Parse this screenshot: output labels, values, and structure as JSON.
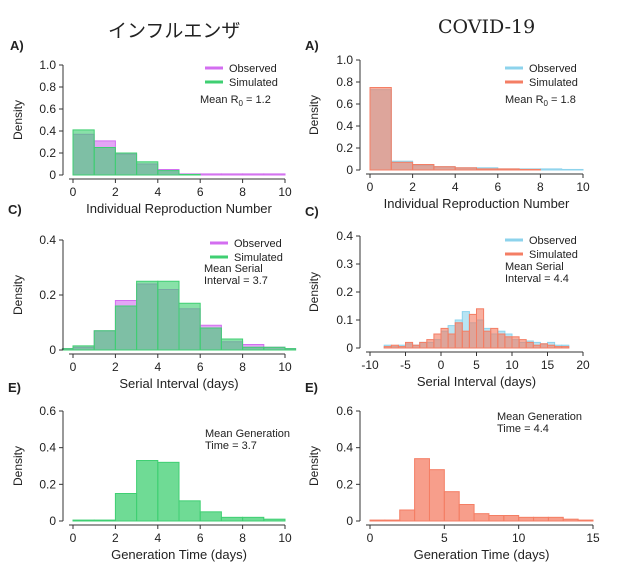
{
  "columns": {
    "left_title": "インフルエンザ",
    "right_title": "COVID-19"
  },
  "chart_data": [
    {
      "id": "flu-r0",
      "type": "bar",
      "panel_label": "A)",
      "xlabel": "Individual Reproduction Number",
      "ylabel": "Density",
      "xlim": [
        0,
        10
      ],
      "ylim": [
        0,
        1.0
      ],
      "xticks": [
        "0",
        "2",
        "4",
        "6",
        "8",
        "10"
      ],
      "yticks": [
        "0",
        "0.2",
        "0.4",
        "0.6",
        "0.8",
        "1.0"
      ],
      "bin_edges": [
        0,
        1,
        2,
        3,
        4,
        5,
        6,
        7,
        8,
        9,
        10
      ],
      "series": [
        {
          "name": "Observed",
          "color": "#d36ef0",
          "values": [
            0.37,
            0.31,
            0.19,
            0.1,
            0.05,
            0.01,
            0.01,
            0.01,
            0.01,
            0.01
          ]
        },
        {
          "name": "Simulated",
          "color": "#3fcf72",
          "values": [
            0.41,
            0.25,
            0.2,
            0.12,
            0.04,
            0.005,
            0,
            0,
            0,
            0
          ]
        }
      ],
      "annotation": [
        "Mean R",
        "0",
        " = 1.2"
      ],
      "legend": "top-right"
    },
    {
      "id": "covid-r0",
      "type": "bar",
      "panel_label": "A)",
      "xlabel": "Individual Reproduction Number",
      "ylabel": "Density",
      "xlim": [
        0,
        10
      ],
      "ylim": [
        0,
        1.0
      ],
      "xticks": [
        "0",
        "2",
        "4",
        "6",
        "8",
        "10"
      ],
      "yticks": [
        "0",
        "0.2",
        "0.4",
        "0.6",
        "0.8",
        "1.0"
      ],
      "bin_edges": [
        0,
        1,
        2,
        3,
        4,
        5,
        6,
        7,
        8,
        9,
        10
      ],
      "series": [
        {
          "name": "Observed",
          "color": "#8dd3ec",
          "values": [
            0.73,
            0.08,
            0.04,
            0.03,
            0.02,
            0.02,
            0.01,
            0.01,
            0.01,
            0.005
          ]
        },
        {
          "name": "Simulated",
          "color": "#f47e64",
          "values": [
            0.75,
            0.07,
            0.05,
            0.03,
            0.02,
            0.01,
            0.01,
            0.005,
            0,
            0
          ]
        }
      ],
      "annotation": [
        "Mean R",
        "0",
        " = 1.8"
      ],
      "legend": "top-right"
    },
    {
      "id": "flu-serial",
      "type": "bar",
      "panel_label": "C)",
      "xlabel": "Serial Interval (days)",
      "ylabel": "Density",
      "xlim": [
        0,
        10
      ],
      "ylim": [
        0,
        0.4
      ],
      "xticks": [
        "0",
        "2",
        "4",
        "6",
        "8",
        "10"
      ],
      "yticks": [
        "0",
        "0.2",
        "0.4"
      ],
      "bin_edges": [
        -0.5,
        0,
        1,
        2,
        3,
        4,
        5,
        6,
        7,
        8,
        9,
        10,
        10.5
      ],
      "series": [
        {
          "name": "Observed",
          "color": "#d36ef0",
          "values": [
            0.005,
            0.01,
            0.07,
            0.18,
            0.24,
            0.22,
            0.15,
            0.09,
            0.03,
            0.02,
            0.01,
            0.005
          ]
        },
        {
          "name": "Simulated",
          "color": "#3fcf72",
          "values": [
            0.005,
            0.015,
            0.07,
            0.16,
            0.25,
            0.25,
            0.17,
            0.08,
            0.04,
            0.01,
            0.01,
            0.005
          ]
        }
      ],
      "annotation": [
        "Mean Serial",
        "Interval = 3.7"
      ],
      "legend": "top-right"
    },
    {
      "id": "covid-serial",
      "type": "bar",
      "panel_label": "C)",
      "xlabel": "Serial Interval (days)",
      "ylabel": "Density",
      "xlim": [
        -10,
        20
      ],
      "ylim": [
        0,
        0.4
      ],
      "xticks": [
        "-10",
        "-5",
        "0",
        "5",
        "10",
        "15",
        "20"
      ],
      "yticks": [
        "0",
        "0.1",
        "0.2",
        "0.3",
        "0.4"
      ],
      "bin_edges": [
        -8,
        -7,
        -6,
        -5,
        -4,
        -3,
        -2,
        -1,
        0,
        1,
        2,
        3,
        4,
        5,
        6,
        7,
        8,
        9,
        10,
        11,
        12,
        13,
        14,
        15,
        16,
        17,
        18
      ],
      "series": [
        {
          "name": "Observed",
          "color": "#8dd3ec",
          "values": [
            0.01,
            0.005,
            0.01,
            0.015,
            0.01,
            0.02,
            0.02,
            0.03,
            0.06,
            0.08,
            0.1,
            0.13,
            0.09,
            0.1,
            0.07,
            0.05,
            0.06,
            0.05,
            0.03,
            0.02,
            0.025,
            0.02,
            0.015,
            0.02,
            0.01,
            0.01
          ]
        },
        {
          "name": "Simulated",
          "color": "#f47e64",
          "values": [
            0.005,
            0.01,
            0.005,
            0.02,
            0.01,
            0.02,
            0.03,
            0.05,
            0.07,
            0.05,
            0.09,
            0.06,
            0.12,
            0.14,
            0.06,
            0.07,
            0.05,
            0.04,
            0.04,
            0.03,
            0.02,
            0.01,
            0.015,
            0.01,
            0.005,
            0.005
          ]
        }
      ],
      "annotation": [
        "Mean Serial",
        "Interval = 4.4"
      ],
      "legend": "top-right"
    },
    {
      "id": "flu-generation",
      "type": "bar",
      "panel_label": "E)",
      "xlabel": "Generation Time (days)",
      "ylabel": "Density",
      "xlim": [
        0,
        10
      ],
      "ylim": [
        0,
        0.6
      ],
      "xticks": [
        "0",
        "2",
        "4",
        "6",
        "8",
        "10"
      ],
      "yticks": [
        "0",
        "0.2",
        "0.4",
        "0.6"
      ],
      "bin_edges": [
        0,
        1,
        2,
        3,
        4,
        5,
        6,
        7,
        8,
        9,
        10
      ],
      "series": [
        {
          "name": "",
          "color": "#3fcf72",
          "values": [
            0.005,
            0.005,
            0.15,
            0.33,
            0.32,
            0.11,
            0.05,
            0.02,
            0.02,
            0.01
          ]
        }
      ],
      "annotation": [
        "Mean Generation",
        "Time = 3.7"
      ]
    },
    {
      "id": "covid-generation",
      "type": "bar",
      "panel_label": "E)",
      "xlabel": "Generation Time (days)",
      "ylabel": "Density",
      "xlim": [
        0,
        15
      ],
      "ylim": [
        0,
        0.6
      ],
      "xticks": [
        "0",
        "5",
        "10",
        "15"
      ],
      "yticks": [
        "0",
        "0.2",
        "0.4",
        "0.6"
      ],
      "bin_edges": [
        0,
        1,
        2,
        3,
        4,
        5,
        6,
        7,
        8,
        9,
        10,
        11,
        12,
        13,
        14,
        15
      ],
      "series": [
        {
          "name": "",
          "color": "#f47e64",
          "values": [
            0.005,
            0.005,
            0.06,
            0.34,
            0.28,
            0.16,
            0.09,
            0.04,
            0.03,
            0.03,
            0.02,
            0.02,
            0.02,
            0.01,
            0.005
          ]
        }
      ],
      "annotation": [
        "Mean Generation",
        "Time = 4.4"
      ]
    }
  ]
}
